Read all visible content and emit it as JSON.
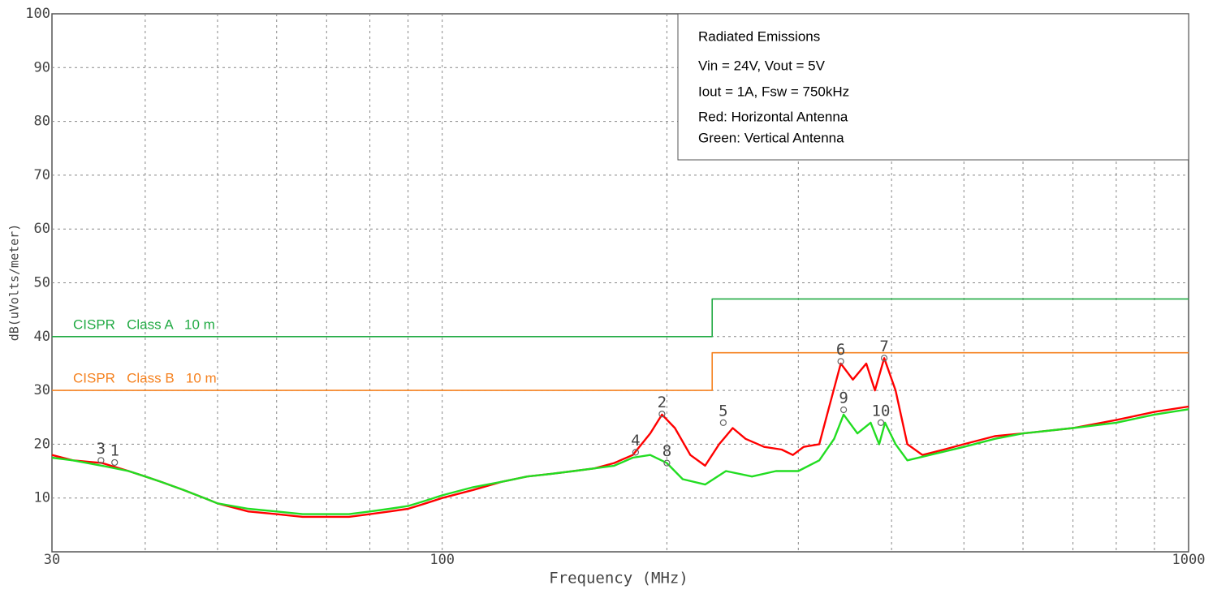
{
  "chart_data": {
    "type": "line",
    "xlabel": "Frequency (MHz)",
    "ylabel": "dB(uVolts/meter)",
    "xscale": "log",
    "xlim": [
      30,
      1000
    ],
    "xticks": [
      30,
      100,
      1000
    ],
    "x_minor_ticks": [
      40,
      50,
      60,
      70,
      80,
      90,
      200,
      300,
      400,
      500,
      600,
      700,
      800,
      900
    ],
    "ylim": [
      0,
      100
    ],
    "yticks": [
      10,
      20,
      30,
      40,
      50,
      60,
      70,
      80,
      90,
      100
    ],
    "grid": true,
    "annotation_lines": [
      "Radiated Emissions",
      "Vin = 24V, Vout = 5V",
      "Iout = 1A, Fsw = 750kHz",
      "Red: Horizontal Antenna",
      "Green: Vertical Antenna"
    ],
    "series": [
      {
        "color": "#ff0000",
        "x": [
          30,
          32,
          35,
          38,
          40,
          42,
          45,
          48,
          50,
          55,
          60,
          65,
          70,
          75,
          80,
          85,
          90,
          95,
          100,
          110,
          120,
          130,
          140,
          150,
          160,
          170,
          180,
          190,
          197,
          205,
          215,
          225,
          235,
          245,
          255,
          270,
          285,
          295,
          305,
          320,
          330,
          342,
          355,
          370,
          380,
          391,
          405,
          420,
          440,
          470,
          500,
          550,
          600,
          700,
          800,
          900,
          1000
        ],
        "values": [
          18,
          17,
          16.5,
          15,
          14,
          13,
          11.5,
          10,
          9,
          7.5,
          7,
          6.5,
          6.5,
          6.5,
          7,
          7.5,
          8,
          9,
          10,
          11.5,
          13,
          14,
          14.5,
          15,
          15.5,
          16.5,
          18,
          22,
          25.5,
          23,
          18,
          16,
          20,
          23,
          21,
          19.5,
          19,
          18,
          19.5,
          20,
          27,
          35,
          32,
          35,
          30,
          36,
          30,
          20,
          18,
          19,
          20,
          21.5,
          22,
          23,
          24.5,
          26,
          27
        ]
      },
      {
        "color": "#22dd22",
        "x": [
          30,
          32,
          35,
          38,
          40,
          42,
          45,
          48,
          50,
          55,
          60,
          65,
          70,
          75,
          80,
          85,
          90,
          95,
          100,
          110,
          120,
          130,
          140,
          150,
          160,
          170,
          180,
          190,
          200,
          210,
          225,
          240,
          260,
          280,
          300,
          320,
          335,
          345,
          360,
          375,
          385,
          392,
          405,
          420,
          450,
          500,
          550,
          600,
          700,
          800,
          900,
          1000
        ],
        "values": [
          17.5,
          17,
          16,
          15,
          14,
          13,
          11.5,
          10,
          9,
          8,
          7.5,
          7,
          7,
          7,
          7.5,
          8,
          8.5,
          9.5,
          10.5,
          12,
          13,
          14,
          14.5,
          15,
          15.5,
          16,
          17.5,
          18,
          16.5,
          13.5,
          12.5,
          15,
          14,
          15,
          15,
          17,
          21,
          25.5,
          22,
          24,
          20,
          24,
          20,
          17,
          18,
          19.5,
          21,
          22,
          23,
          24,
          25.5,
          26.5
        ]
      },
      {
        "name": "CISPR   Class A   10 m",
        "color": "#22aa44",
        "x": [
          30,
          230,
          230,
          1000
        ],
        "values": [
          40,
          40,
          47,
          47
        ]
      },
      {
        "name": "CISPR   Class B   10 m",
        "color": "#f58220",
        "x": [
          30,
          230,
          230,
          1000
        ],
        "values": [
          30,
          30,
          37,
          37
        ]
      }
    ],
    "markers": [
      {
        "label": "1",
        "x": 36.4,
        "y": 16.6
      },
      {
        "label": "2",
        "x": 197,
        "y": 25.6
      },
      {
        "label": "3",
        "x": 34.9,
        "y": 17
      },
      {
        "label": "4",
        "x": 181.6,
        "y": 18.5
      },
      {
        "label": "5",
        "x": 238,
        "y": 24
      },
      {
        "label": "6",
        "x": 342,
        "y": 35.4
      },
      {
        "label": "7",
        "x": 391,
        "y": 36
      },
      {
        "label": "8",
        "x": 200,
        "y": 16.5
      },
      {
        "label": "9",
        "x": 345,
        "y": 26.4
      },
      {
        "label": "10",
        "x": 387,
        "y": 24
      }
    ]
  }
}
